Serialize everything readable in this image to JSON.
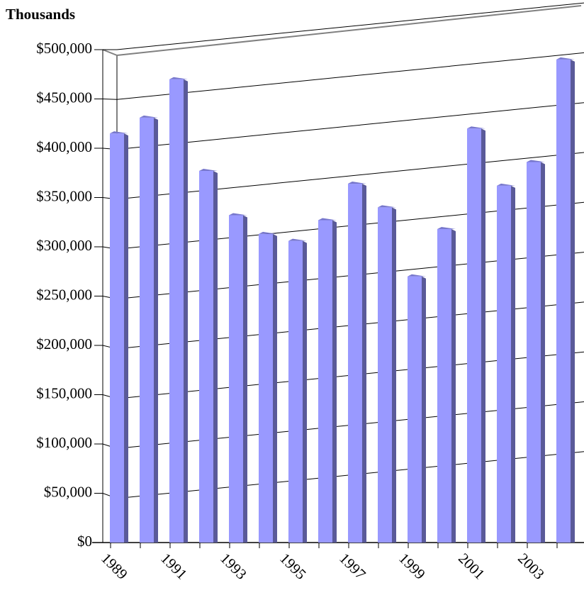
{
  "chart_data": {
    "type": "bar3d",
    "title": "Thousands",
    "categories": [
      "1989",
      null,
      "1991",
      null,
      "1993",
      null,
      "1995",
      null,
      "1997",
      null,
      "1999",
      null,
      "2001",
      null,
      "2003",
      null
    ],
    "values": [
      415000,
      431000,
      470000,
      377000,
      332000,
      313000,
      306000,
      327000,
      364000,
      340000,
      270000,
      318000,
      420000,
      362000,
      386000,
      490000
    ],
    "color": "#9999ff",
    "ylim": [
      0,
      500000
    ],
    "yticks": [
      {
        "value": 0,
        "label": "$0"
      },
      {
        "value": 50000,
        "label": "$50,000"
      },
      {
        "value": 100000,
        "label": "$100,000"
      },
      {
        "value": 150000,
        "label": "$150,000"
      },
      {
        "value": 200000,
        "label": "$200,000"
      },
      {
        "value": 250000,
        "label": "$250,000"
      },
      {
        "value": 300000,
        "label": "$300,000"
      },
      {
        "value": 350000,
        "label": "$350,000"
      },
      {
        "value": 400000,
        "label": "$400,000"
      },
      {
        "value": 450000,
        "label": "$450,000"
      },
      {
        "value": 500000,
        "label": "$500,000"
      }
    ],
    "grid": true
  }
}
